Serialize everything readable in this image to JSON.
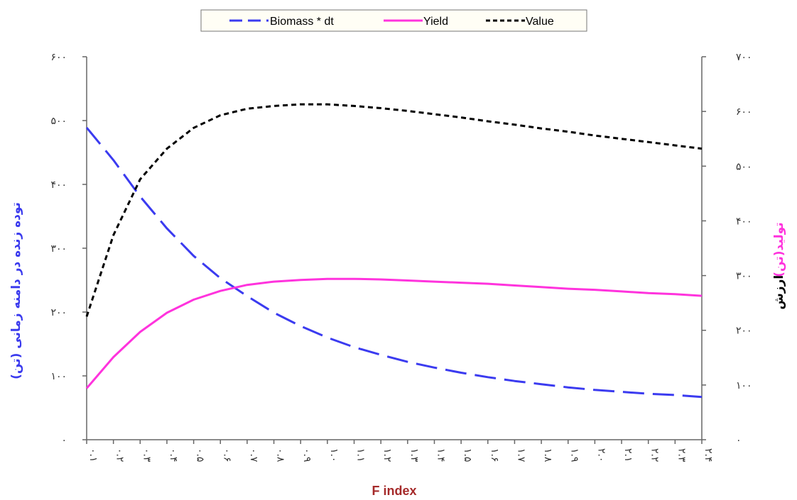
{
  "chart_data": {
    "type": "line",
    "xlabel": "F index",
    "ylabel_left": "توده زنده در دامنه زمانی (تن)",
    "ylabel_right_part1": "تولید(تن)",
    "ylabel_right_part2": "ارزش",
    "categories": [
      "۰.۱",
      "۰.۲",
      "۰.۳",
      "۰.۴",
      "۰.۵",
      "۰.۶",
      "۰.۷",
      "۰.۸",
      "۰.۹",
      "۱.۰",
      "۱.۱",
      "۱.۲",
      "۱.۳",
      "۱.۴",
      "۱.۵",
      "۱.۶",
      "۱.۷",
      "۱.۸",
      "۱.۹",
      "۲.۰",
      "۲.۱",
      "۲.۲",
      "۲.۳",
      "۲.۴"
    ],
    "x": [
      0.1,
      0.2,
      0.3,
      0.4,
      0.5,
      0.6,
      0.7,
      0.8,
      0.9,
      1.0,
      1.1,
      1.2,
      1.3,
      1.4,
      1.5,
      1.6,
      1.7,
      1.8,
      1.9,
      2.0,
      2.1,
      2.2,
      2.3,
      2.4
    ],
    "y_left_ticks": [
      "۰",
      "۱۰۰",
      "۲۰۰",
      "۳۰۰",
      "۴۰۰",
      "۵۰۰",
      "۶۰۰"
    ],
    "y_left_range": [
      0,
      600
    ],
    "y_right_ticks": [
      "۰",
      "۱۰۰",
      "۲۰۰",
      "۳۰۰",
      "۴۰۰",
      "۵۰۰",
      "۶۰۰",
      "۷۰۰"
    ],
    "y_right_range": [
      0,
      700
    ],
    "legend_position": "top-center",
    "grid": false,
    "series": [
      {
        "name": "Biomass * dt",
        "axis": "left",
        "color": "#3b3bf0",
        "dash": "long-dash",
        "values": [
          489,
          438,
          381,
          331,
          288,
          253,
          225,
          199,
          178,
          160,
          145,
          133,
          122,
          113,
          105,
          98,
          92,
          87,
          82,
          78,
          75,
          72,
          70,
          67
        ]
      },
      {
        "name": "Yield",
        "axis": "right",
        "color": "#ff33dd",
        "dash": "solid",
        "values": [
          94,
          151,
          197,
          232,
          256,
          272,
          283,
          289,
          292,
          294,
          294,
          293,
          291,
          289,
          287,
          285,
          282,
          279,
          276,
          274,
          271,
          268,
          266,
          263
        ]
      },
      {
        "name": "Value",
        "axis": "right",
        "color": "#000000",
        "dash": "short-dash",
        "values": [
          225,
          374,
          476,
          532,
          570,
          593,
          605,
          610,
          613,
          613,
          610,
          606,
          601,
          595,
          589,
          582,
          576,
          569,
          563,
          556,
          550,
          544,
          538,
          532
        ]
      }
    ]
  }
}
